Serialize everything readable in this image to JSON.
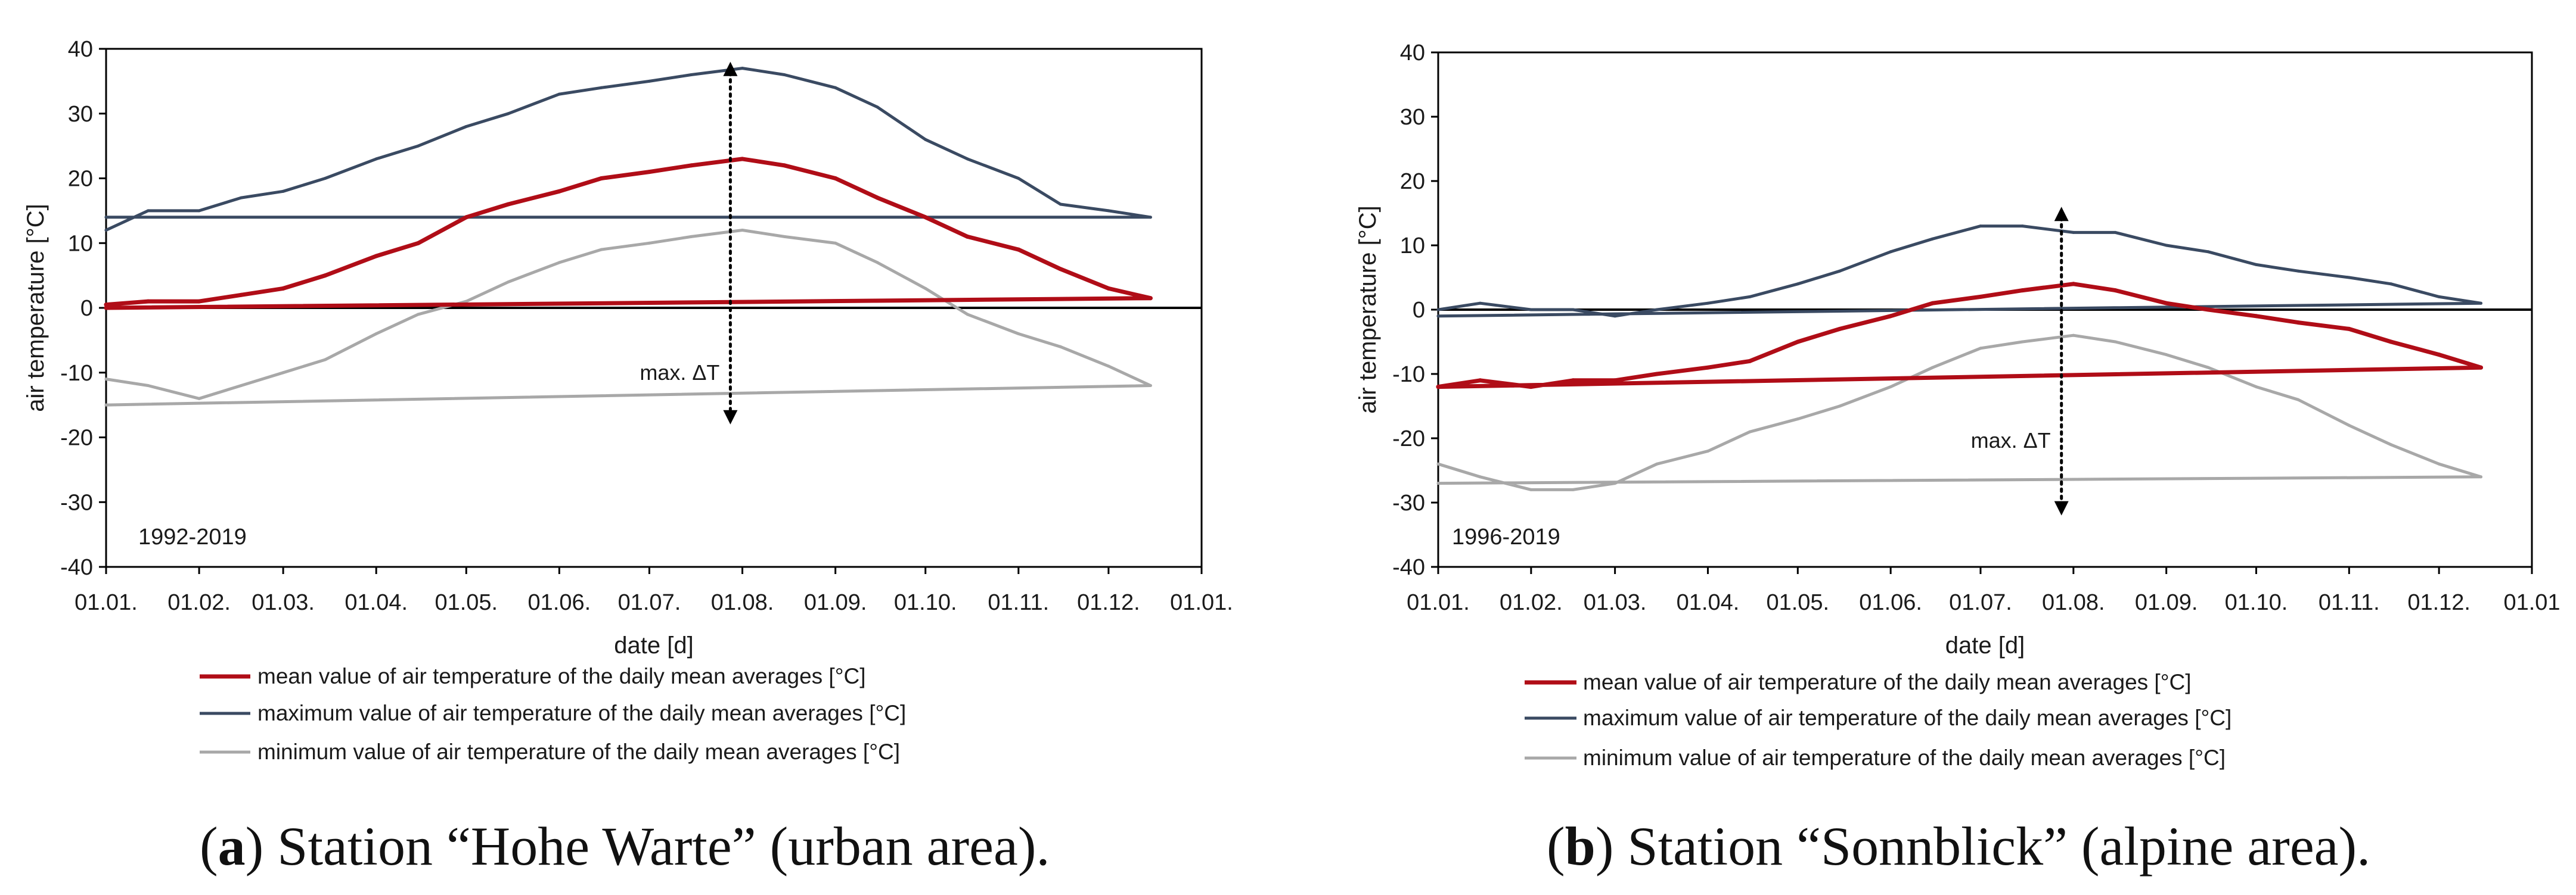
{
  "colors": {
    "mean": "#b00d17",
    "max": "#3a4a62",
    "min": "#a8a8a8",
    "axis": "#000000",
    "text": "#1a1a1a"
  },
  "chart_data": [
    {
      "type": "line",
      "panel": "a",
      "xlabel": "date [d]",
      "ylabel": "air temperature [°C]",
      "ylim": [
        -40,
        40
      ],
      "yticks": [
        -40,
        -30,
        -20,
        -10,
        0,
        10,
        20,
        30,
        40
      ],
      "xticks": [
        "01.01.",
        "01.02.",
        "01.03.",
        "01.04.",
        "01.05.",
        "01.06.",
        "01.07.",
        "01.08.",
        "01.09.",
        "01.10.",
        "01.11.",
        "01.12.",
        "01.01."
      ],
      "x": [
        "01.01.",
        "15.01.",
        "01.02.",
        "15.02.",
        "01.03.",
        "15.03.",
        "01.04.",
        "15.04.",
        "01.05.",
        "15.05.",
        "01.06.",
        "15.06.",
        "01.07.",
        "15.07.",
        "01.08.",
        "15.08.",
        "01.09.",
        "15.09.",
        "01.10.",
        "15.10.",
        "01.11.",
        "15.11.",
        "01.12.",
        "15.12.",
        "01.01."
      ],
      "grid": false,
      "period_label": "1992-2019",
      "annotation": {
        "text": "max. ΔT",
        "date": "28.07.",
        "from": 38,
        "to": -18
      },
      "legend": {
        "position": "bottom",
        "entries": [
          "mean value of air temperature of the daily mean averages [°C]",
          "maximum value of air temperature of the daily mean averages [°C]",
          "minimum value of air temperature of the daily mean averages [°C]"
        ]
      },
      "series": [
        {
          "key": "max",
          "values": [
            12,
            15,
            15,
            17,
            18,
            20,
            23,
            25,
            28,
            30,
            33,
            34,
            35,
            36,
            37,
            36,
            34,
            31,
            26,
            23,
            20,
            16,
            15,
            14,
            14
          ]
        },
        {
          "key": "mean",
          "values": [
            0.5,
            1,
            1,
            2,
            3,
            5,
            8,
            10,
            14,
            16,
            18,
            20,
            21,
            22,
            23,
            22,
            20,
            17,
            14,
            11,
            9,
            6,
            3,
            1.5,
            0
          ]
        },
        {
          "key": "min",
          "values": [
            -11,
            -12,
            -14,
            -12,
            -10,
            -8,
            -4,
            -1,
            1,
            4,
            7,
            9,
            10,
            11,
            12,
            11,
            10,
            7,
            3,
            -1,
            -4,
            -6,
            -9,
            -12,
            -15
          ]
        }
      ],
      "caption": {
        "letter": "a",
        "text": " Station “Hohe Warte” (urban area)."
      }
    },
    {
      "type": "line",
      "panel": "b",
      "xlabel": "date [d]",
      "ylabel": "air temperature [°C]",
      "ylim": [
        -40,
        40
      ],
      "yticks": [
        -40,
        -30,
        -20,
        -10,
        0,
        10,
        20,
        30,
        40
      ],
      "xticks": [
        "01.01.",
        "01.02.",
        "01.03.",
        "01.04.",
        "01.05.",
        "01.06.",
        "01.07.",
        "01.08.",
        "01.09.",
        "01.10.",
        "01.11.",
        "01.12.",
        "01.01"
      ],
      "x": [
        "01.01.",
        "15.01.",
        "01.02.",
        "15.02.",
        "01.03.",
        "15.03.",
        "01.04.",
        "15.04.",
        "01.05.",
        "15.05.",
        "01.06.",
        "15.06.",
        "01.07.",
        "15.07.",
        "01.08.",
        "15.08.",
        "01.09.",
        "15.09.",
        "01.10.",
        "15.10.",
        "01.11.",
        "15.11.",
        "01.12.",
        "15.12.",
        "01.01."
      ],
      "grid": false,
      "period_label": "1996-2019",
      "annotation": {
        "text": "max. ΔT",
        "date": "28.07.",
        "from": 16,
        "to": -32
      },
      "legend": {
        "position": "bottom",
        "entries": [
          "mean value of air temperature of the daily mean averages [°C]",
          "maximum value of air temperature of the daily mean averages [°C]",
          "minimum value of air temperature of the daily mean averages [°C]"
        ]
      },
      "series": [
        {
          "key": "max",
          "values": [
            0,
            1,
            0,
            0,
            -1,
            0,
            1,
            2,
            4,
            6,
            9,
            11,
            13,
            13,
            12,
            12,
            10,
            9,
            7,
            6,
            5,
            4,
            2,
            1,
            -1
          ]
        },
        {
          "key": "mean",
          "values": [
            -12,
            -11,
            -12,
            -11,
            -11,
            -10,
            -9,
            -8,
            -5,
            -3,
            -1,
            1,
            2,
            3,
            4,
            3,
            1,
            0,
            -1,
            -2,
            -3,
            -5,
            -7,
            -9,
            -12
          ]
        },
        {
          "key": "min",
          "values": [
            -24,
            -26,
            -28,
            -28,
            -27,
            -24,
            -22,
            -19,
            -17,
            -15,
            -12,
            -9,
            -6,
            -5,
            -4,
            -5,
            -7,
            -9,
            -12,
            -14,
            -18,
            -21,
            -24,
            -26,
            -27
          ]
        }
      ],
      "caption": {
        "letter": "b",
        "text": " Station “Sonnblick” (alpine area)."
      }
    }
  ]
}
